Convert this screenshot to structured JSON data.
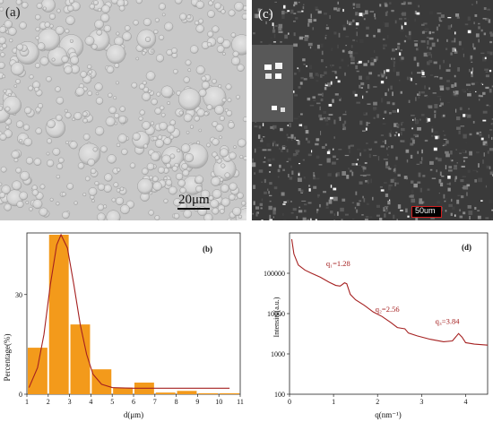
{
  "panels": {
    "a": {
      "label": "(a)",
      "scale_bar": "20μm"
    },
    "c": {
      "label": "(c)",
      "scale_bar": "50um"
    },
    "b": {
      "label": "(b)"
    },
    "d": {
      "label": "(d)"
    }
  },
  "chart_data": [
    {
      "type": "bar",
      "panel": "(b)",
      "xlabel": "d(μm)",
      "ylabel": "Percentage(%)",
      "xlim": [
        1,
        11
      ],
      "ylim": [
        0,
        48
      ],
      "xticks": [
        1,
        2,
        3,
        4,
        5,
        6,
        7,
        8,
        9,
        10,
        11
      ],
      "yticks": [
        0,
        30
      ],
      "bar_color": "#f39a1b",
      "curve_color": "#a52020",
      "bars": [
        {
          "x": 1.5,
          "value": 14
        },
        {
          "x": 2.5,
          "value": 48
        },
        {
          "x": 3.5,
          "value": 21
        },
        {
          "x": 4.5,
          "value": 7.5
        },
        {
          "x": 5.5,
          "value": 2
        },
        {
          "x": 6.5,
          "value": 3.5
        },
        {
          "x": 7.5,
          "value": 0.5
        },
        {
          "x": 8.5,
          "value": 1
        },
        {
          "x": 9.5,
          "value": 0.3
        },
        {
          "x": 10.5,
          "value": 0.3
        }
      ],
      "fit": [
        [
          1.1,
          2
        ],
        [
          1.5,
          8
        ],
        [
          1.8,
          18
        ],
        [
          2.1,
          33
        ],
        [
          2.4,
          45
        ],
        [
          2.6,
          48
        ],
        [
          2.9,
          44
        ],
        [
          3.2,
          33
        ],
        [
          3.5,
          21
        ],
        [
          3.8,
          12
        ],
        [
          4.1,
          6
        ],
        [
          4.5,
          3
        ],
        [
          5,
          2
        ],
        [
          6,
          1.8
        ],
        [
          8,
          1.8
        ],
        [
          10.5,
          1.8
        ]
      ]
    },
    {
      "type": "line",
      "panel": "(d)",
      "xlabel": "q(nm⁻¹)",
      "ylabel": "Intensity(a.u.)",
      "xlim": [
        0,
        4.5
      ],
      "ylim": [
        100,
        1000000
      ],
      "yscale": "log",
      "xticks": [
        0,
        1,
        2,
        3,
        4
      ],
      "yticks": [
        100,
        1000,
        10000,
        100000
      ],
      "line_color": "#a52020",
      "annotations": [
        {
          "text": "q₁=1.28",
          "x": 1.28
        },
        {
          "text": "q₂=2.56",
          "x": 2.56
        },
        {
          "text": "q₃=3.84",
          "x": 3.84
        }
      ],
      "points": [
        [
          0.05,
          700000
        ],
        [
          0.1,
          300000
        ],
        [
          0.2,
          160000
        ],
        [
          0.35,
          120000
        ],
        [
          0.5,
          100000
        ],
        [
          0.7,
          80000
        ],
        [
          0.9,
          60000
        ],
        [
          1.05,
          50000
        ],
        [
          1.15,
          48000
        ],
        [
          1.25,
          58000
        ],
        [
          1.3,
          55000
        ],
        [
          1.38,
          30000
        ],
        [
          1.5,
          22000
        ],
        [
          1.7,
          16000
        ],
        [
          1.9,
          11000
        ],
        [
          2.1,
          8500
        ],
        [
          2.3,
          6000
        ],
        [
          2.45,
          4500
        ],
        [
          2.56,
          4300
        ],
        [
          2.62,
          4200
        ],
        [
          2.7,
          3300
        ],
        [
          2.9,
          2800
        ],
        [
          3.2,
          2300
        ],
        [
          3.5,
          2000
        ],
        [
          3.7,
          2100
        ],
        [
          3.84,
          3200
        ],
        [
          3.92,
          2600
        ],
        [
          4.0,
          1900
        ],
        [
          4.2,
          1750
        ],
        [
          4.5,
          1650
        ]
      ]
    }
  ]
}
